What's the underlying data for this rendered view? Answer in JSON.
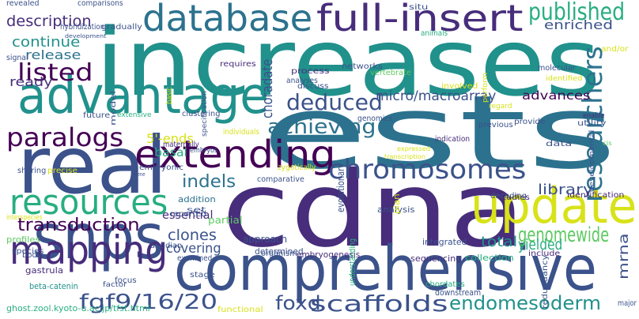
{
  "palette": {
    "purple": "#440154",
    "indigo": "#472d7b",
    "blue": "#3b528b",
    "steel": "#2c728e",
    "teal": "#21918c",
    "green": "#28ae80",
    "lime": "#5ec962",
    "chartreuse": "#addc30",
    "yellow": "#fde725"
  },
  "words": [
    {
      "text": "increases",
      "color": "#21918c"
    },
    {
      "text": "ests",
      "color": "#2c728e"
    },
    {
      "text": "cdna",
      "color": "#472d7b"
    },
    {
      "text": "comprehensive",
      "color": "#3b528b"
    },
    {
      "text": "update",
      "color": "#d8e219"
    },
    {
      "text": "real",
      "color": "#3b528b"
    },
    {
      "text": "advantage",
      "color": "#21918c"
    },
    {
      "text": "snps",
      "color": "#3b528b"
    },
    {
      "text": "database",
      "color": "#2c728e"
    },
    {
      "text": "full-insert",
      "color": "#472d7b"
    },
    {
      "text": "extending",
      "color": "#440154"
    },
    {
      "text": "resources",
      "color": "#28ae80"
    },
    {
      "text": "chromosomes",
      "color": "#3b528b"
    },
    {
      "text": "mapping",
      "color": "#472d7b"
    },
    {
      "text": "researchers",
      "color": "#2c728e"
    },
    {
      "text": "paralogs",
      "color": "#440154"
    },
    {
      "text": "published",
      "color": "#28ae80"
    },
    {
      "text": "listed",
      "color": "#440154"
    },
    {
      "text": "deduced",
      "color": "#3b528b"
    },
    {
      "text": "achieving",
      "color": "#2c728e"
    },
    {
      "text": "genomewide",
      "color": "#5ec962"
    },
    {
      "text": "scaffolds",
      "color": "#3b528b"
    },
    {
      "text": "fgf9/16/20",
      "color": "#3b528b"
    },
    {
      "text": "endomesoderm",
      "color": "#21918c"
    },
    {
      "text": "foxd",
      "color": "#3b528b"
    },
    {
      "text": "transduction",
      "color": "#440154"
    },
    {
      "text": "library",
      "color": "#3b528b"
    },
    {
      "text": "description",
      "color": "#472d7b"
    },
    {
      "text": "continue",
      "color": "#21918c"
    },
    {
      "text": "release",
      "color": "#2c728e"
    },
    {
      "text": "enriched",
      "color": "#3b528b"
    },
    {
      "text": "advances",
      "color": "#440154"
    },
    {
      "text": "micro/macroarray",
      "color": "#3b528b"
    },
    {
      "text": "indels",
      "color": "#2c728e"
    },
    {
      "text": "clones",
      "color": "#3b528b"
    },
    {
      "text": "yielded",
      "color": "#28ae80"
    },
    {
      "text": "total",
      "color": "#21918c"
    },
    {
      "text": "covering",
      "color": "#3b528b"
    },
    {
      "text": "choradate",
      "color": "#3b528b"
    },
    {
      "text": "mrna",
      "color": "#3b528b"
    },
    {
      "text": "5'-ends",
      "color": "#d8e219"
    },
    {
      "text": "basal",
      "color": "#28ae80"
    },
    {
      "text": "ready",
      "color": "#472d7b"
    },
    {
      "text": "essential",
      "color": "#472d7b"
    },
    {
      "text": "addition",
      "color": "#2c728e"
    },
    {
      "text": "partial",
      "color": "#5ec962"
    },
    {
      "text": "approach",
      "color": "#3b528b"
    },
    {
      "text": "determined",
      "color": "#3b528b"
    },
    {
      "text": "evolutionary",
      "color": "#3b528b"
    },
    {
      "text": "analysis",
      "color": "#3b528b"
    },
    {
      "text": "integrated",
      "color": "#3b528b"
    },
    {
      "text": "sequencing",
      "color": "#472d7b"
    },
    {
      "text": "collection",
      "color": "#28ae80"
    },
    {
      "text": "downstream",
      "color": "#3b528b"
    },
    {
      "text": "chordates",
      "color": "#28ae80"
    },
    {
      "text": "embryogenesis",
      "color": "#472d7b"
    },
    {
      "text": "organism",
      "color": "#3b528b"
    },
    {
      "text": "understanding",
      "color": "#28ae80"
    },
    {
      "text": "comparative",
      "color": "#3b528b"
    },
    {
      "text": "plan",
      "color": "#d8e219"
    },
    {
      "text": "studies",
      "color": "#472d7b"
    },
    {
      "text": "decoding",
      "color": "#3b528b"
    },
    {
      "text": "identification",
      "color": "#472d7b"
    },
    {
      "text": "profiles",
      "color": "#5ec962"
    },
    {
      "text": "species",
      "color": "#3b528b"
    },
    {
      "text": "body",
      "color": "#3b528b"
    },
    {
      "text": "gastrula",
      "color": "#472d7b"
    },
    {
      "text": "beta-catenin",
      "color": "#21918c"
    },
    {
      "text": "ghost.zool.kyoto-u.ac.jp/tfst.html",
      "color": "#28ae80"
    },
    {
      "text": "functional",
      "color": "#d8e219"
    },
    {
      "text": "focus",
      "color": "#3b528b"
    },
    {
      "text": "factor",
      "color": "#3b528b"
    },
    {
      "text": "include",
      "color": "#472d7b"
    },
    {
      "text": "redundancy",
      "color": "#3b528b"
    },
    {
      "text": "major",
      "color": "#3b528b"
    },
    {
      "text": "developmental",
      "color": "#3b528b"
    },
    {
      "text": "utility",
      "color": "#3b528b"
    },
    {
      "text": "enable",
      "color": "#472d7b"
    },
    {
      "text": "data",
      "color": "#3b528b"
    },
    {
      "text": "provide",
      "color": "#3b528b"
    },
    {
      "text": "previous",
      "color": "#3b528b"
    },
    {
      "text": "indication",
      "color": "#472d7b"
    },
    {
      "text": "genomics",
      "color": "#3b528b"
    },
    {
      "text": "zygotically",
      "color": "#d8e219"
    },
    {
      "text": "individuals",
      "color": "#d8e219"
    },
    {
      "text": "maternally",
      "color": "#472d7b"
    },
    {
      "text": "embryos",
      "color": "#3b528b"
    },
    {
      "text": "embryonic",
      "color": "#3b528b"
    },
    {
      "text": "sharing",
      "color": "#3b528b"
    },
    {
      "text": "precise",
      "color": "#d8e219"
    },
    {
      "text": "interspecies",
      "color": "#d8e219"
    },
    {
      "text": "gene",
      "color": "#3b528b"
    },
    {
      "text": "ascidian",
      "color": "#3b528b"
    },
    {
      "text": "examined",
      "color": "#3b528b"
    },
    {
      "text": "stage",
      "color": "#3b528b"
    },
    {
      "text": "reported",
      "color": "#3b528b"
    },
    {
      "text": "set",
      "color": "#3b528b"
    },
    {
      "text": "clustering",
      "color": "#3b528b"
    },
    {
      "text": "future",
      "color": "#3b528b"
    },
    {
      "text": "extensive",
      "color": "#28ae80"
    },
    {
      "text": "basic",
      "color": "#d8e219"
    },
    {
      "text": "specification",
      "color": "#3b528b"
    },
    {
      "text": "model",
      "color": "#3b528b"
    },
    {
      "text": "requires",
      "color": "#472d7b"
    },
    {
      "text": "process",
      "color": "#472d7b"
    },
    {
      "text": "discuss",
      "color": "#3b528b"
    },
    {
      "text": "networks",
      "color": "#3b528b"
    },
    {
      "text": "analyses",
      "color": "#3b528b"
    },
    {
      "text": "involved",
      "color": "#d8e219"
    },
    {
      "text": "molecular",
      "color": "#3b528b"
    },
    {
      "text": "identified",
      "color": "#d8e219"
    },
    {
      "text": "regard",
      "color": "#d8e219"
    },
    {
      "text": "expressed",
      "color": "#d8e219"
    },
    {
      "text": "transcription",
      "color": "#d8e219"
    },
    {
      "text": "cis",
      "color": "#5ec962"
    },
    {
      "text": "perform",
      "color": "#d8e219"
    },
    {
      "text": "vertebrate",
      "color": "#5ec962"
    },
    {
      "text": "animals",
      "color": "#28ae80"
    },
    {
      "text": "situ",
      "color": "#3b528b"
    },
    {
      "text": "and/or",
      "color": "#d8e219"
    },
    {
      "text": "revealed",
      "color": "#3b528b"
    },
    {
      "text": "comparisons",
      "color": "#3b528b"
    },
    {
      "text": "gradually",
      "color": "#3b528b"
    },
    {
      "text": "hybridization",
      "color": "#3b528b"
    },
    {
      "text": "development",
      "color": "#3b528b"
    },
    {
      "text": "signal",
      "color": "#3b528b"
    }
  ]
}
